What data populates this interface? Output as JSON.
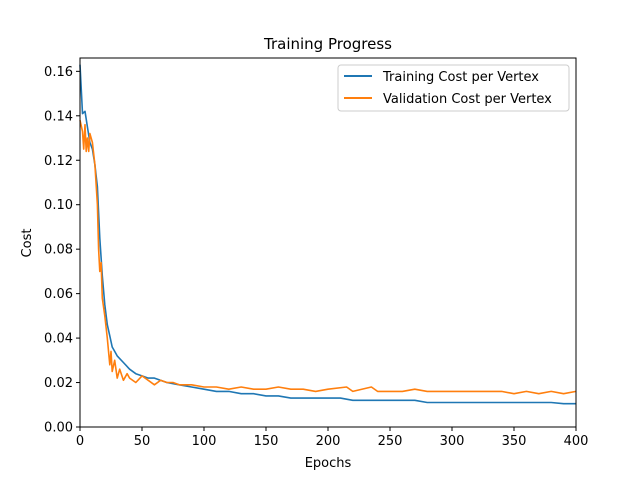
{
  "chart_data": {
    "type": "line",
    "title": "Training Progress",
    "xlabel": "Epochs",
    "ylabel": "Cost",
    "xlim": [
      0,
      400
    ],
    "ylim": [
      0,
      0.166
    ],
    "xticks": [
      0,
      50,
      100,
      150,
      200,
      250,
      300,
      350,
      400
    ],
    "yticks": [
      0.0,
      0.02,
      0.04,
      0.06,
      0.08,
      0.1,
      0.12,
      0.14,
      0.16
    ],
    "xtick_labels": [
      "0",
      "50",
      "100",
      "150",
      "200",
      "250",
      "300",
      "350",
      "400"
    ],
    "ytick_labels": [
      "0.00",
      "0.02",
      "0.04",
      "0.06",
      "0.08",
      "0.10",
      "0.12",
      "0.14",
      "0.16"
    ],
    "grid": false,
    "legend_position": "upper right",
    "series": [
      {
        "name": "Training Cost per Vertex",
        "color": "#1f77b4",
        "x": [
          0,
          2,
          4,
          6,
          8,
          10,
          12,
          14,
          16,
          18,
          20,
          22,
          24,
          26,
          28,
          30,
          35,
          40,
          45,
          50,
          55,
          60,
          70,
          80,
          90,
          100,
          110,
          120,
          130,
          140,
          150,
          160,
          170,
          180,
          190,
          200,
          210,
          220,
          230,
          240,
          250,
          260,
          270,
          280,
          290,
          300,
          310,
          320,
          330,
          340,
          350,
          360,
          370,
          380,
          390,
          400
        ],
        "y": [
          0.163,
          0.141,
          0.142,
          0.135,
          0.128,
          0.125,
          0.118,
          0.108,
          0.085,
          0.068,
          0.055,
          0.046,
          0.041,
          0.036,
          0.034,
          0.032,
          0.029,
          0.026,
          0.024,
          0.023,
          0.022,
          0.022,
          0.02,
          0.019,
          0.018,
          0.017,
          0.016,
          0.016,
          0.015,
          0.015,
          0.014,
          0.014,
          0.013,
          0.013,
          0.013,
          0.013,
          0.013,
          0.012,
          0.012,
          0.012,
          0.012,
          0.012,
          0.012,
          0.011,
          0.011,
          0.011,
          0.011,
          0.011,
          0.011,
          0.011,
          0.011,
          0.011,
          0.011,
          0.011,
          0.0105,
          0.0105
        ]
      },
      {
        "name": "Validation Cost per Vertex",
        "color": "#ff7f0e",
        "x": [
          0,
          2,
          3,
          4,
          5,
          6,
          7,
          8,
          10,
          12,
          14,
          15,
          16,
          17,
          18,
          20,
          22,
          24,
          25,
          26,
          28,
          30,
          32,
          35,
          38,
          40,
          45,
          50,
          55,
          60,
          65,
          70,
          75,
          80,
          90,
          100,
          110,
          120,
          130,
          140,
          150,
          160,
          170,
          180,
          190,
          200,
          215,
          220,
          235,
          240,
          250,
          260,
          270,
          280,
          290,
          300,
          310,
          320,
          330,
          340,
          350,
          360,
          370,
          380,
          390,
          400
        ],
        "y": [
          0.138,
          0.133,
          0.125,
          0.136,
          0.124,
          0.13,
          0.124,
          0.132,
          0.128,
          0.118,
          0.1,
          0.08,
          0.07,
          0.074,
          0.058,
          0.05,
          0.04,
          0.028,
          0.034,
          0.025,
          0.03,
          0.022,
          0.026,
          0.021,
          0.024,
          0.022,
          0.02,
          0.023,
          0.021,
          0.019,
          0.021,
          0.02,
          0.02,
          0.019,
          0.019,
          0.018,
          0.018,
          0.017,
          0.018,
          0.017,
          0.017,
          0.018,
          0.017,
          0.017,
          0.016,
          0.017,
          0.018,
          0.016,
          0.018,
          0.016,
          0.016,
          0.016,
          0.017,
          0.016,
          0.016,
          0.016,
          0.016,
          0.016,
          0.016,
          0.016,
          0.015,
          0.016,
          0.015,
          0.016,
          0.015,
          0.016
        ]
      }
    ]
  }
}
